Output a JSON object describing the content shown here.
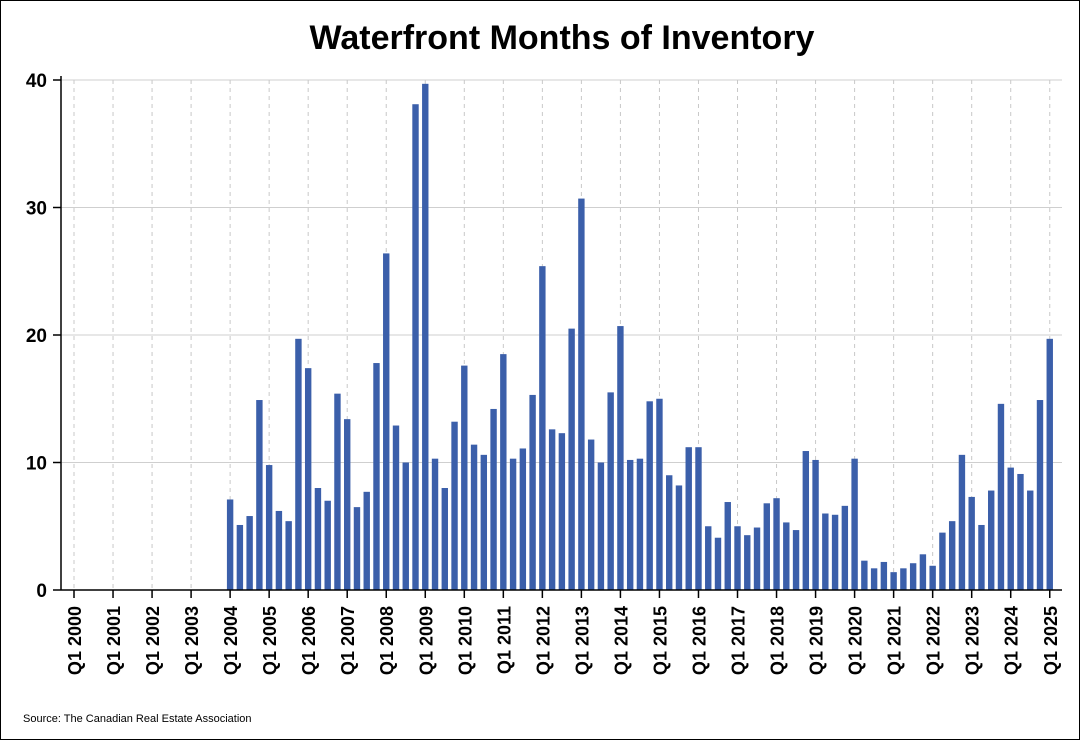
{
  "chart_data": {
    "type": "bar",
    "title": "Waterfront Months of Inventory",
    "source": "Source: The Canadian Real Estate Association",
    "xlabel": "",
    "ylabel": "",
    "ylim": [
      0,
      40
    ],
    "yticks": [
      0,
      10,
      20,
      30,
      40
    ],
    "grid": true,
    "bar_color": "#3b5faa",
    "x_tick_labels": [
      "Q1 2000",
      "Q1 2001",
      "Q1 2002",
      "Q1 2003",
      "Q1 2004",
      "Q1 2005",
      "Q1 2006",
      "Q1 2007",
      "Q1 2008",
      "Q1 2009",
      "Q1 2010",
      "Q1 2011",
      "Q1 2012",
      "Q1 2013",
      "Q1 2014",
      "Q1 2015",
      "Q1 2016",
      "Q1 2017",
      "Q1 2018",
      "Q1 2019",
      "Q1 2020",
      "Q1 2021",
      "Q1 2022",
      "Q1 2023",
      "Q1 2024",
      "Q1 2025"
    ],
    "categories": [
      "Q1 2004",
      "Q2 2004",
      "Q3 2004",
      "Q4 2004",
      "Q1 2005",
      "Q2 2005",
      "Q3 2005",
      "Q4 2005",
      "Q1 2006",
      "Q2 2006",
      "Q3 2006",
      "Q4 2006",
      "Q1 2007",
      "Q2 2007",
      "Q3 2007",
      "Q4 2007",
      "Q1 2008",
      "Q2 2008",
      "Q3 2008",
      "Q4 2008",
      "Q1 2009",
      "Q2 2009",
      "Q3 2009",
      "Q4 2009",
      "Q1 2010",
      "Q2 2010",
      "Q3 2010",
      "Q4 2010",
      "Q1 2011",
      "Q2 2011",
      "Q3 2011",
      "Q4 2011",
      "Q1 2012",
      "Q2 2012",
      "Q3 2012",
      "Q4 2012",
      "Q1 2013",
      "Q2 2013",
      "Q3 2013",
      "Q4 2013",
      "Q1 2014",
      "Q2 2014",
      "Q3 2014",
      "Q4 2014",
      "Q1 2015",
      "Q2 2015",
      "Q3 2015",
      "Q4 2015",
      "Q1 2016",
      "Q2 2016",
      "Q3 2016",
      "Q4 2016",
      "Q1 2017",
      "Q2 2017",
      "Q3 2017",
      "Q4 2017",
      "Q1 2018",
      "Q2 2018",
      "Q3 2018",
      "Q4 2018",
      "Q1 2019",
      "Q2 2019",
      "Q3 2019",
      "Q4 2019",
      "Q1 2020",
      "Q2 2020",
      "Q3 2020",
      "Q4 2020",
      "Q1 2021",
      "Q2 2021",
      "Q3 2021",
      "Q4 2021",
      "Q1 2022",
      "Q2 2022",
      "Q3 2022",
      "Q4 2022",
      "Q1 2023",
      "Q2 2023",
      "Q3 2023",
      "Q4 2023",
      "Q1 2024",
      "Q2 2024",
      "Q3 2024",
      "Q4 2024",
      "Q1 2025"
    ],
    "values": [
      7.1,
      5.1,
      5.8,
      14.9,
      9.8,
      6.2,
      5.4,
      19.7,
      17.4,
      8.0,
      7.0,
      15.4,
      13.4,
      6.5,
      7.7,
      17.8,
      26.4,
      12.9,
      10.0,
      38.1,
      39.7,
      10.3,
      8.0,
      13.2,
      17.6,
      11.4,
      10.6,
      14.2,
      18.5,
      10.3,
      11.1,
      15.3,
      25.4,
      12.6,
      12.3,
      20.5,
      30.7,
      11.8,
      10.0,
      15.5,
      20.7,
      10.2,
      10.3,
      14.8,
      15.0,
      9.0,
      8.2,
      11.2,
      11.2,
      5.0,
      4.1,
      6.9,
      5.0,
      4.3,
      4.9,
      6.8,
      7.2,
      5.3,
      4.7,
      10.9,
      10.2,
      6.0,
      5.9,
      6.6,
      10.3,
      2.3,
      1.7,
      2.2,
      1.4,
      1.7,
      2.1,
      2.8,
      1.9,
      4.5,
      5.4,
      10.6,
      7.3,
      5.1,
      7.8,
      14.6,
      9.6,
      9.1,
      7.8,
      14.9,
      19.7
    ]
  }
}
